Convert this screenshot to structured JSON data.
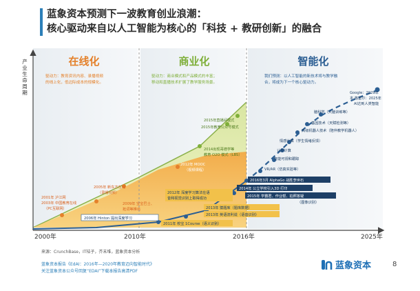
{
  "title": {
    "line1": "蓝象资本预测下一波教育创业浪潮：",
    "line2": "核心驱动来自以人工智能为核心的「科技 + 教研创新」的融合"
  },
  "y_axis_label": "产业生命周期",
  "x_ticks": [
    "2000年",
    "2010年",
    "2016年",
    "2025年"
  ],
  "phases": [
    {
      "name": "在线化",
      "desc": [
        "驱动力：教育资讯内容、录播视频",
        "的线上化，低边际成本的规模化。"
      ]
    },
    {
      "name": "商业化",
      "desc": [
        "驱动力：商业模式和产品模式的丰富；",
        "移动和直播技术扩展了教学服务场景。"
      ]
    },
    {
      "name": "智能化",
      "desc": [
        "我们预测：以人工智能的新技术将与教学融",
        "合，将成为下一个核心驱动力。"
      ]
    }
  ],
  "milestones": [
    {
      "text": "2001年 沪江网",
      "group": "online"
    },
    {
      "text": "2003年 中国教育在线",
      "group": "online"
    },
    {
      "text": "（PC互联网）",
      "group": "online"
    },
    {
      "text": "2005年 新东方在线",
      "group": "online"
    },
    {
      "text": "（录播视频）",
      "group": "online"
    },
    {
      "text": "2009年 宝宝巴士、",
      "group": "online"
    },
    {
      "text": "拓词等推出",
      "group": "online"
    },
    {
      "text": "2006年 Hinton 提出深度学习",
      "group": "ai"
    },
    {
      "text": "2012年 深度学习算法在语",
      "group": "ai"
    },
    {
      "text": "音和视觉识别上取得成功",
      "group": "ai"
    },
    {
      "text": "2011年 校宝 1Course（语义识别）",
      "group": "ai"
    },
    {
      "text": "2013年 猿题库（题库数据）",
      "group": "ai"
    },
    {
      "text": "2013年 英语流利说（语音识别）",
      "group": "ai"
    },
    {
      "text": "2014年 公立学校引入3D 打印",
      "group": "ai"
    },
    {
      "text": "2015年 学霸君、作业帮、拍照答疑",
      "group": "ai"
    },
    {
      "text": "（图像识别）",
      "group": "ai"
    },
    {
      "text": "2012年 MOOC",
      "group": "biz"
    },
    {
      "text": "（视频课程）",
      "group": "biz"
    },
    {
      "text": "2014出现哥德学等",
      "group": "biz"
    },
    {
      "text": "教育 O2O 模式（LBS）",
      "group": "biz"
    },
    {
      "text": "2015年直播间模式",
      "group": "biz"
    },
    {
      "text": "2015年教育公众号模式",
      "group": "biz"
    },
    {
      "text": "2016年3月 AlphaGo 战胜李世石",
      "group": "ai"
    }
  ],
  "future_points": [
    {
      "text": "VR/AR（仿真实验等）"
    },
    {
      "text": "认知计算"
    },
    {
      "text": "情感计算（学生情绪反馈）"
    },
    {
      "text": "智能可视和跟踪"
    },
    {
      "text": "高级机器人技术（陪伴教学机器人）"
    },
    {
      "text": "基因技术（天赋检测等）"
    },
    {
      "text": "脑科学（大脑训练等）"
    },
    {
      "text": "Google：2029年"
    },
    {
      "text": "本·格雷尔：2025年"
    },
    {
      "text": "AI达到人类智能"
    }
  ],
  "footer": {
    "sources": "来源：CrunchBase，IT桔子，芥末堆，蓝象资本分析",
    "note1": "蓝象资本报告《EdAI：2016年—2020年教育迈向智能时代》",
    "note2": "关注蓝象资本公众号回复“EDAI”下载本报告高清PDF"
  },
  "logo": {
    "text": "蓝象资本",
    "mark": "ʃn"
  },
  "page_number": "8",
  "colors": {
    "online": "#e4812b",
    "biz": "#7faf3a",
    "ai": "#2b5e93",
    "title_accent": "#2c7fb8"
  }
}
